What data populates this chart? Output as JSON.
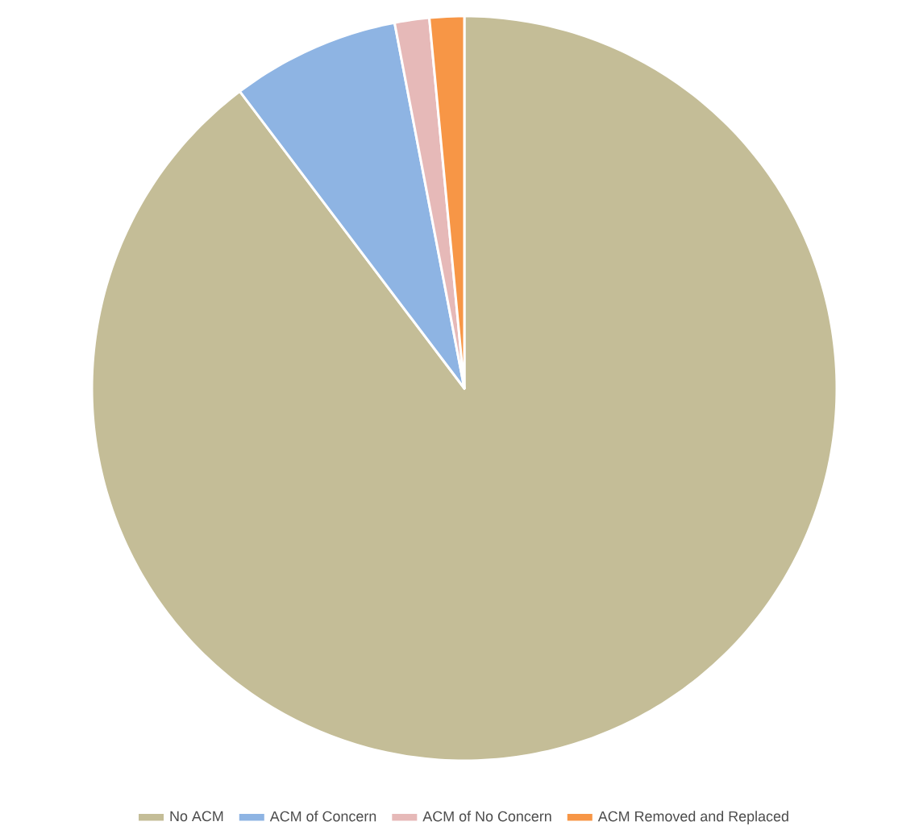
{
  "chart_data": {
    "type": "pie",
    "categories": [
      "No ACM",
      "ACM of Concern",
      "ACM of No Concern",
      "ACM Removed and Replaced"
    ],
    "values": [
      89.7,
      7.3,
      1.5,
      1.5
    ],
    "colors": [
      "#c4bd97",
      "#8eb4e3",
      "#e6b9b8",
      "#f79646"
    ],
    "legend": "bottom"
  }
}
